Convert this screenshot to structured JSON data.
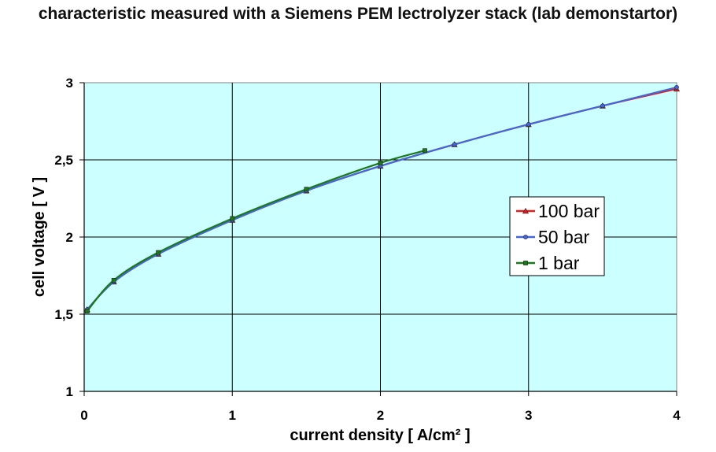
{
  "chart_data": {
    "type": "line",
    "title": "characteristic measured with a Siemens PEM lectrolyzer stack (lab demonstartor)",
    "xlabel": "current density  [ A/cm² ]",
    "ylabel": "cell voltage  [ V ]",
    "xlim": [
      0,
      4
    ],
    "ylim": [
      1,
      3
    ],
    "xticks": [
      0,
      1,
      2,
      3,
      4
    ],
    "xtick_labels": [
      "0",
      "1",
      "2",
      "3",
      "4"
    ],
    "yticks": [
      1,
      1.5,
      2,
      2.5,
      3
    ],
    "ytick_labels": [
      "1",
      "1,5",
      "2",
      "2,5",
      "3"
    ],
    "grid": true,
    "plot_background": "#ccffff",
    "legend_position": "right",
    "series": [
      {
        "name": "100 bar",
        "color": "#e02020",
        "marker": "triangle",
        "x": [
          0.02,
          0.2,
          0.5,
          1.0,
          1.5,
          2.0,
          2.5,
          3.0,
          3.5,
          4.0
        ],
        "y": [
          1.53,
          1.71,
          1.89,
          2.11,
          2.3,
          2.46,
          2.6,
          2.73,
          2.85,
          2.96
        ]
      },
      {
        "name": "50 bar",
        "color": "#4466dd",
        "marker": "circle",
        "x": [
          0.02,
          0.2,
          0.5,
          1.0,
          1.5,
          2.0,
          2.5,
          3.0,
          3.5,
          4.0
        ],
        "y": [
          1.53,
          1.71,
          1.89,
          2.11,
          2.3,
          2.46,
          2.6,
          2.73,
          2.85,
          2.97
        ]
      },
      {
        "name": "1 bar",
        "color": "#1a7a1a",
        "marker": "square",
        "x": [
          0.02,
          0.2,
          0.5,
          1.0,
          1.5,
          2.0,
          2.3
        ],
        "y": [
          1.52,
          1.72,
          1.9,
          2.12,
          2.31,
          2.48,
          2.56
        ]
      }
    ]
  }
}
